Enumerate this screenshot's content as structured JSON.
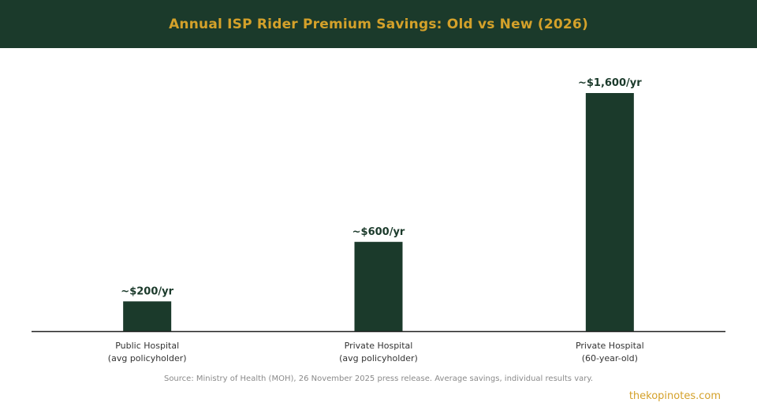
{
  "title": "Annual ISP Rider Premium Savings: Old vs New (2026)",
  "source": "Source: Ministry of Health (MOH), 26 November 2025 press release. Average savings, individual results vary.",
  "brand": "thekopinotes.com",
  "colors": {
    "header_bg": "#1b3a2b",
    "title": "#d4a12a",
    "bar": "#1b3a2b",
    "label": "#1b3a2b",
    "brand": "#d4a12a"
  },
  "chart_data": {
    "type": "bar",
    "categories": [
      [
        "Public Hospital",
        "(avg policyholder)"
      ],
      [
        "Private Hospital",
        "(avg policyholder)"
      ],
      [
        "Private Hospital",
        "(60-year-old)"
      ]
    ],
    "values": [
      200,
      600,
      1600
    ],
    "data_labels": [
      "~$200/yr",
      "~$600/yr",
      "~$1,600/yr"
    ],
    "ylim": [
      0,
      1600
    ],
    "grid": false,
    "legend": "none"
  }
}
